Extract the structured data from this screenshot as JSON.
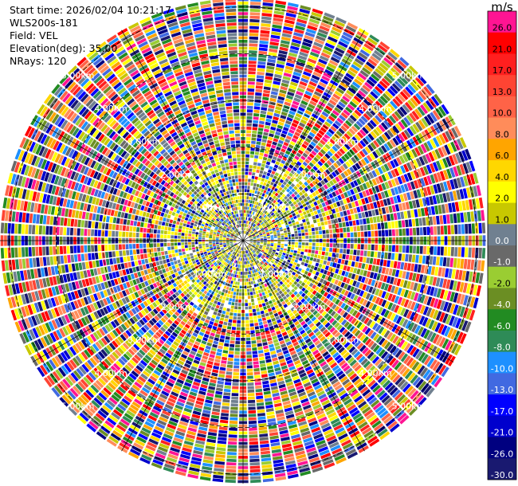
{
  "header": {
    "start_time": "Start time: 2026/02/04 10:21:17",
    "instrument": "WLS200s-181",
    "field": "Field: VEL",
    "elevation": "Elevation(deg): 35.00",
    "nrays": "NRays: 120"
  },
  "colorbar": {
    "unit": "m/s",
    "levels": [
      {
        "label": "26.0",
        "color": "#ff1493"
      },
      {
        "label": "21.0",
        "color": "#ff0000"
      },
      {
        "label": "17.0",
        "color": "#ff1f1f"
      },
      {
        "label": "13.0",
        "color": "#ff4433"
      },
      {
        "label": "10.0",
        "color": "#ff6347"
      },
      {
        "label": "8.0",
        "color": "#ff8c5a"
      },
      {
        "label": "6.0",
        "color": "#ffa500"
      },
      {
        "label": "4.0",
        "color": "#ffd700"
      },
      {
        "label": "2.0",
        "color": "#ffff00"
      },
      {
        "label": "1.0",
        "color": "#c8c800"
      },
      {
        "label": "0.0",
        "color": "#708090"
      },
      {
        "label": "-1.0",
        "color": "#696969"
      },
      {
        "label": "-2.0",
        "color": "#9acd32"
      },
      {
        "label": "-4.0",
        "color": "#6b8e23"
      },
      {
        "label": "-6.0",
        "color": "#228b22"
      },
      {
        "label": "-8.0",
        "color": "#2e8b57"
      },
      {
        "label": "-10.0",
        "color": "#1e90ff"
      },
      {
        "label": "-13.0",
        "color": "#4169e1"
      },
      {
        "label": "-17.0",
        "color": "#0000ff"
      },
      {
        "label": "-21.0",
        "color": "#0000cd"
      },
      {
        "label": "-26.0",
        "color": "#000080"
      },
      {
        "label": "-30.0",
        "color": "#191970"
      }
    ]
  },
  "chart_data": {
    "type": "heatmap",
    "plot": "PPI (polar plan position indicator)",
    "field": "VEL",
    "units": "m/s",
    "elevation_deg": 35.0,
    "nrays": 120,
    "range_rings_km": [
      1.0,
      2.0,
      3.0,
      4.0,
      5.0
    ],
    "range_ring_labels": [
      "1.00km",
      "2.00km",
      "3.00km",
      "4.00km",
      "5.00km"
    ],
    "spokes_deg": [
      0,
      30,
      60,
      90,
      120,
      150,
      180,
      210,
      240,
      270,
      300,
      330
    ],
    "colorbar_range": [
      -30.0,
      26.0
    ],
    "pattern": "near-range gates (< ~1.5 km) mostly low velocities (yellow/grey/green); outer gates noisy, saturated across full color scale"
  }
}
